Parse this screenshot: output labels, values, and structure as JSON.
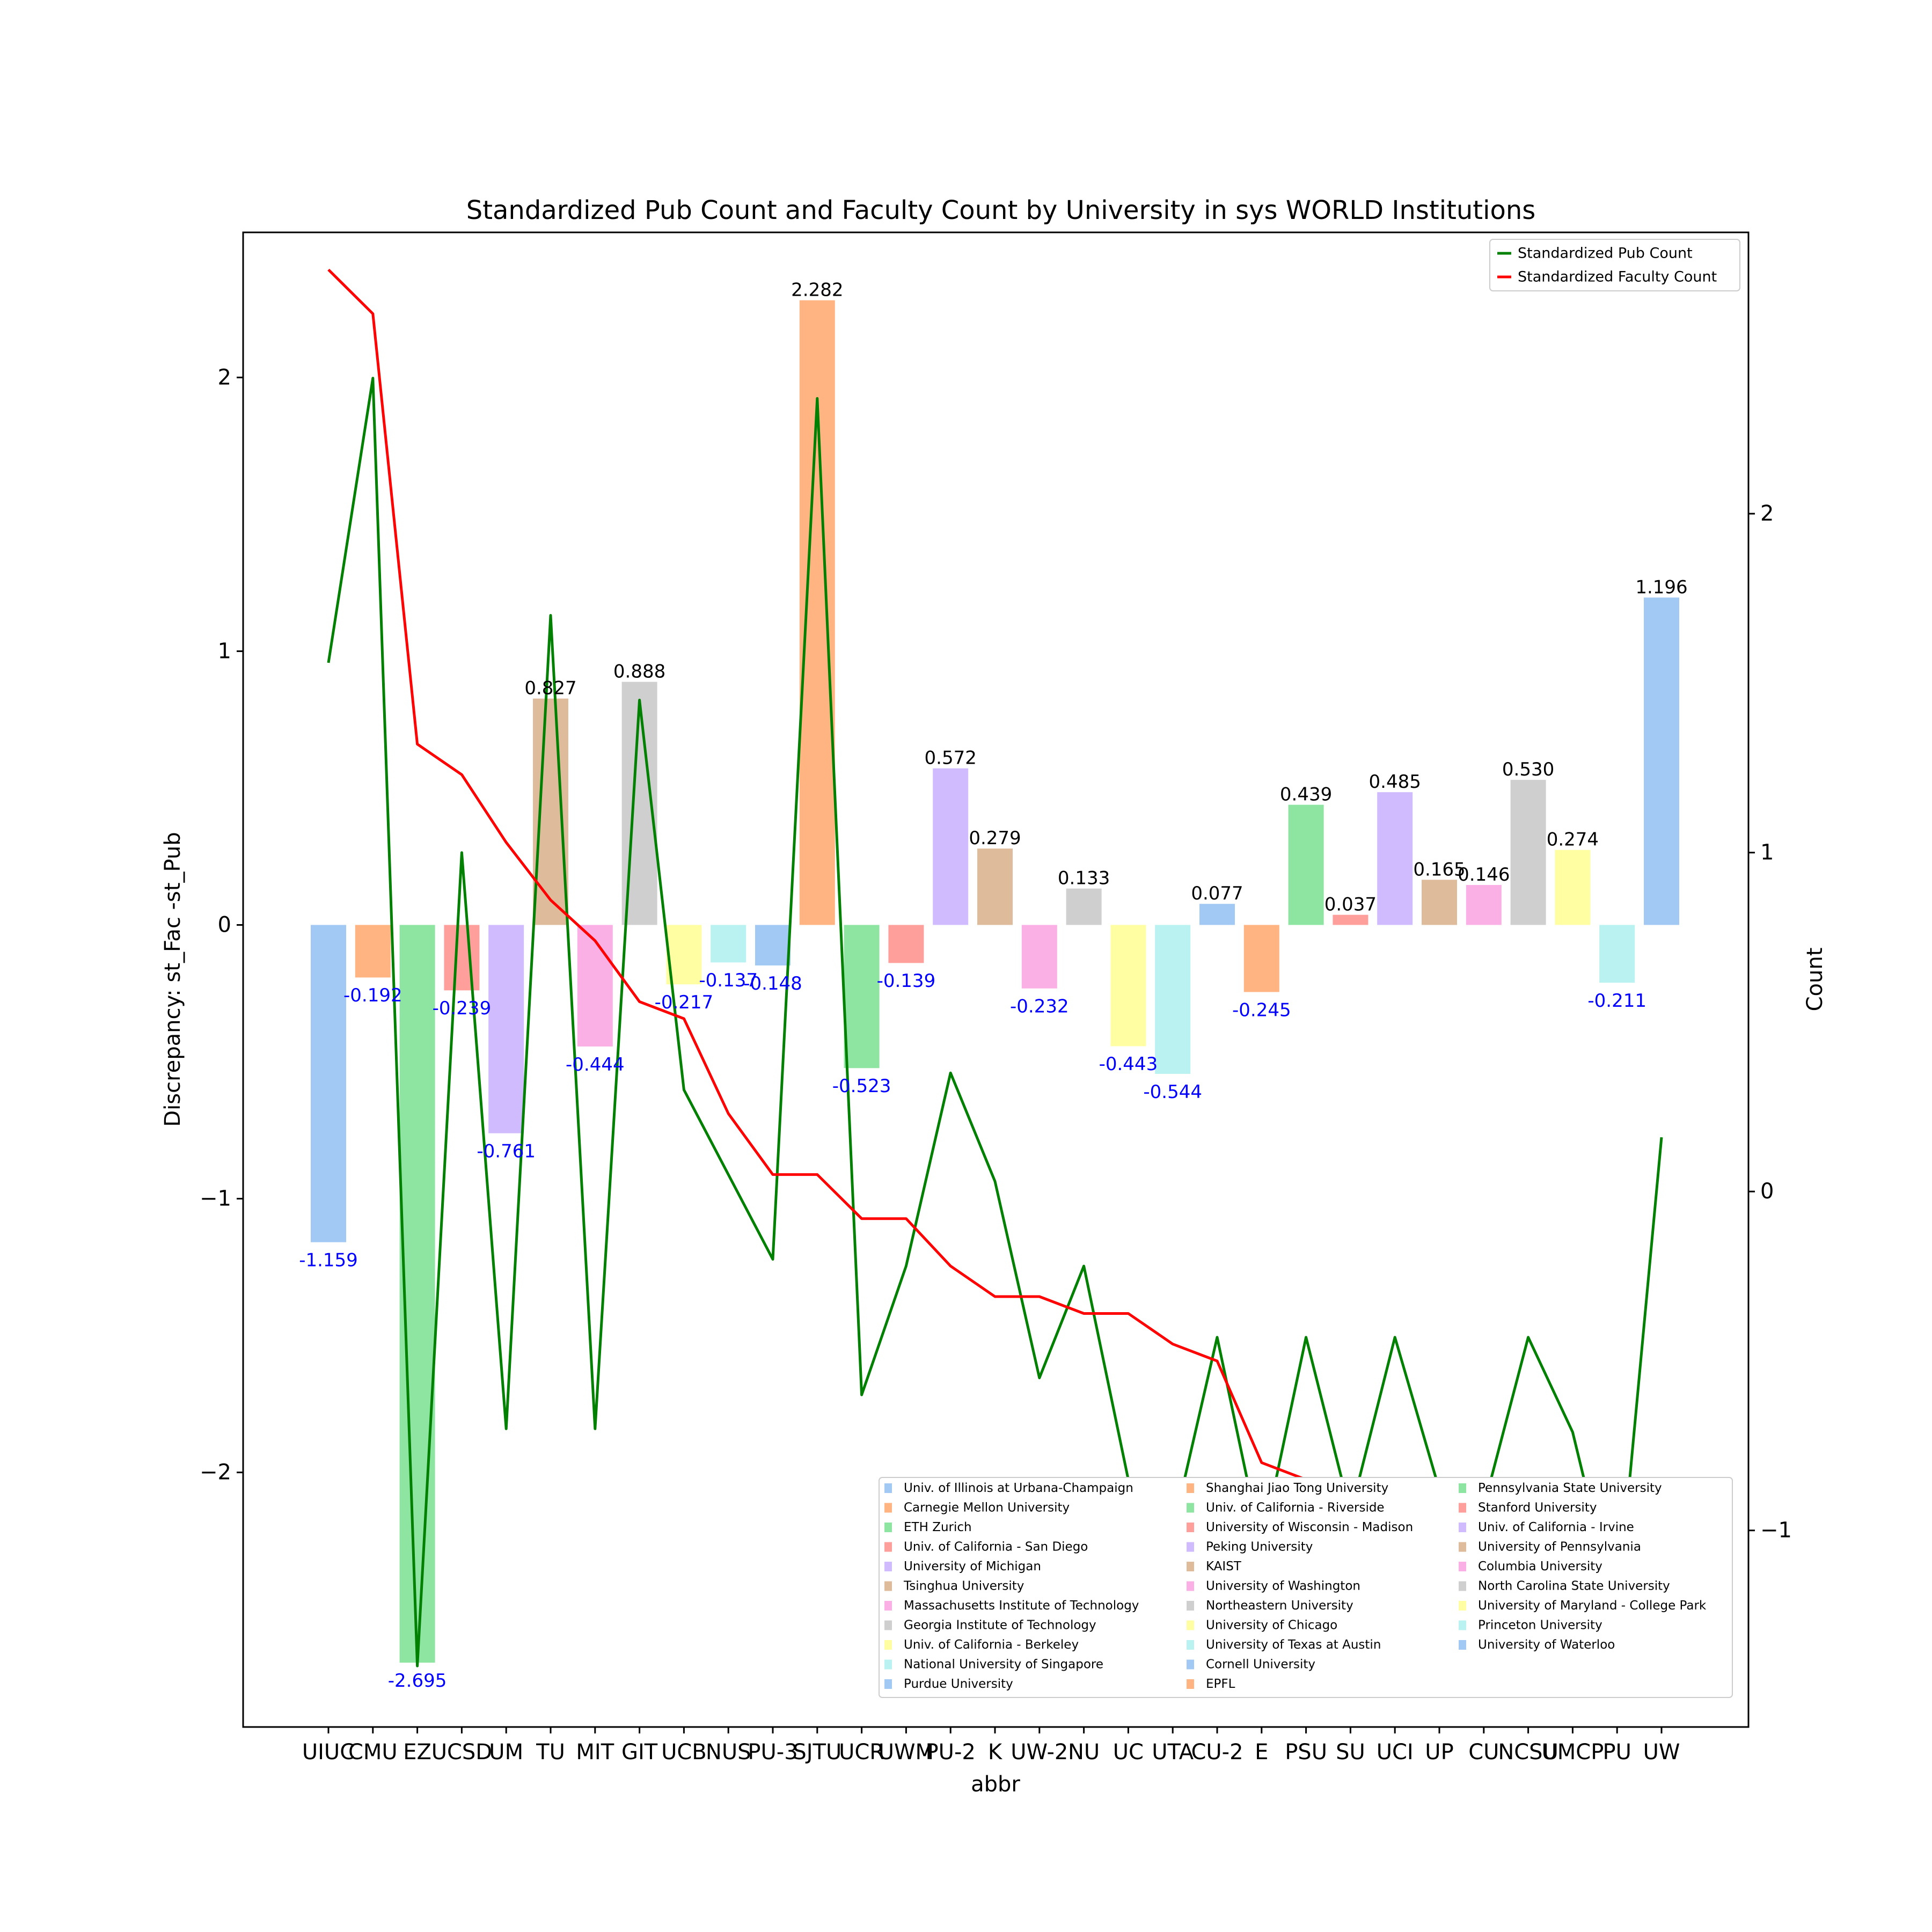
{
  "chart_data": {
    "type": "bar",
    "title": "Standardized Pub Count and Faculty Count by University in sys WORLD Institutions",
    "xlabel": "abbr",
    "ylabel": "Discrepancy: st_Fac -st_Pub",
    "ylabel_right": "Count",
    "ylim": [
      -2.93,
      2.53
    ],
    "ylim_right": [
      -1.58,
      2.83
    ],
    "yticks": [
      -2,
      -1,
      0,
      1,
      2
    ],
    "yticks_right": [
      -1,
      0,
      1,
      2
    ],
    "grid": false,
    "categories": [
      "UIUC",
      "CMU",
      "EZ",
      "UCSD",
      "UM",
      "TU",
      "MIT",
      "GIT",
      "UCB",
      "NUS",
      "PU-3",
      "SJTU",
      "UCR",
      "UWM",
      "PU-2",
      "K",
      "UW-2",
      "NU",
      "UC",
      "UTA",
      "CU-2",
      "E",
      "PSU",
      "SU",
      "UCI",
      "UP",
      "CU",
      "NCSU",
      "UMCP",
      "PU",
      "UW"
    ],
    "institutions": [
      "Univ. of Illinois at Urbana-Champaign",
      "Carnegie Mellon University",
      "ETH Zurich",
      "Univ. of California - San Diego",
      "University of Michigan",
      "Tsinghua University",
      "Massachusetts Institute of Technology",
      "Georgia Institute of Technology",
      "Univ. of California - Berkeley",
      "National University of Singapore",
      "Purdue University",
      "Shanghai Jiao Tong University",
      "Univ. of California - Riverside",
      "University of Wisconsin - Madison",
      "Peking University",
      "KAIST",
      "University of Washington",
      "Northeastern University",
      "University of Chicago",
      "University of Texas at Austin",
      "Cornell University",
      "EPFL",
      "Pennsylvania State University",
      "Stanford University",
      "Univ. of California - Irvine",
      "University of Pennsylvania",
      "Columbia University",
      "North Carolina State University",
      "University of Maryland - College Park",
      "Princeton University",
      "University of Waterloo"
    ],
    "bar_colors": [
      "#a1c9f4",
      "#ffb482",
      "#8de5a1",
      "#ff9f9b",
      "#d0bbff",
      "#debb9b",
      "#fab0e4",
      "#cfcfcf",
      "#fffea3",
      "#b9f2f0"
    ],
    "bar_values": [
      -1.159,
      -0.192,
      -2.695,
      -0.239,
      -0.761,
      0.827,
      -0.444,
      0.888,
      -0.217,
      -0.137,
      -0.148,
      2.282,
      -0.523,
      -0.139,
      0.572,
      0.279,
      -0.232,
      0.133,
      -0.443,
      -0.544,
      0.077,
      -0.245,
      0.439,
      0.037,
      0.485,
      0.165,
      0.146,
      0.53,
      0.274,
      -0.211,
      1.196
    ],
    "bar_labels": [
      "-1.159",
      "-0.192",
      "-2.695",
      "-0.239",
      "-0.761",
      "0.827",
      "-0.444",
      "0.888",
      "-0.217",
      "-0.137",
      "-0.148",
      "2.282",
      "-0.523",
      "-0.139",
      "0.572",
      "0.279",
      "-0.232",
      "0.133",
      "-0.443",
      "-0.544",
      "0.077",
      "-0.245",
      "0.439",
      "0.037",
      "0.485",
      "0.165",
      "0.146",
      "0.530",
      "0.274",
      "-0.211",
      "1.196"
    ],
    "series": [
      {
        "name": "Standardized Pub Count",
        "color": "#008000",
        "axis": "right",
        "values": [
          1.56,
          2.4,
          -1.4,
          1.0,
          -0.7,
          1.7,
          -0.7,
          1.45,
          0.3,
          0.05,
          -0.2,
          2.34,
          -0.6,
          -0.22,
          0.35,
          0.03,
          -0.55,
          -0.22,
          -0.85,
          -1.0,
          -0.43,
          -1.05,
          -0.43,
          -0.95,
          -0.43,
          -0.88,
          -0.93,
          -0.43,
          -0.71,
          -1.25,
          0.16
        ]
      },
      {
        "name": "Standardized Faculty Count",
        "color": "#ff0000",
        "axis": "right",
        "values": [
          2.72,
          2.59,
          1.32,
          1.23,
          1.03,
          0.86,
          0.74,
          0.56,
          0.51,
          0.23,
          0.05,
          0.05,
          -0.08,
          -0.08,
          -0.22,
          -0.31,
          -0.31,
          -0.36,
          -0.36,
          -0.45,
          -0.5,
          -0.8,
          -0.85,
          -0.9,
          -0.9,
          -0.9,
          -0.95,
          -0.95,
          -0.95,
          -1.03,
          -1.03
        ]
      }
    ],
    "legend_lines_position": "top-right",
    "legend_bars_position": "lower-right",
    "legend_bars_columns": 3
  }
}
